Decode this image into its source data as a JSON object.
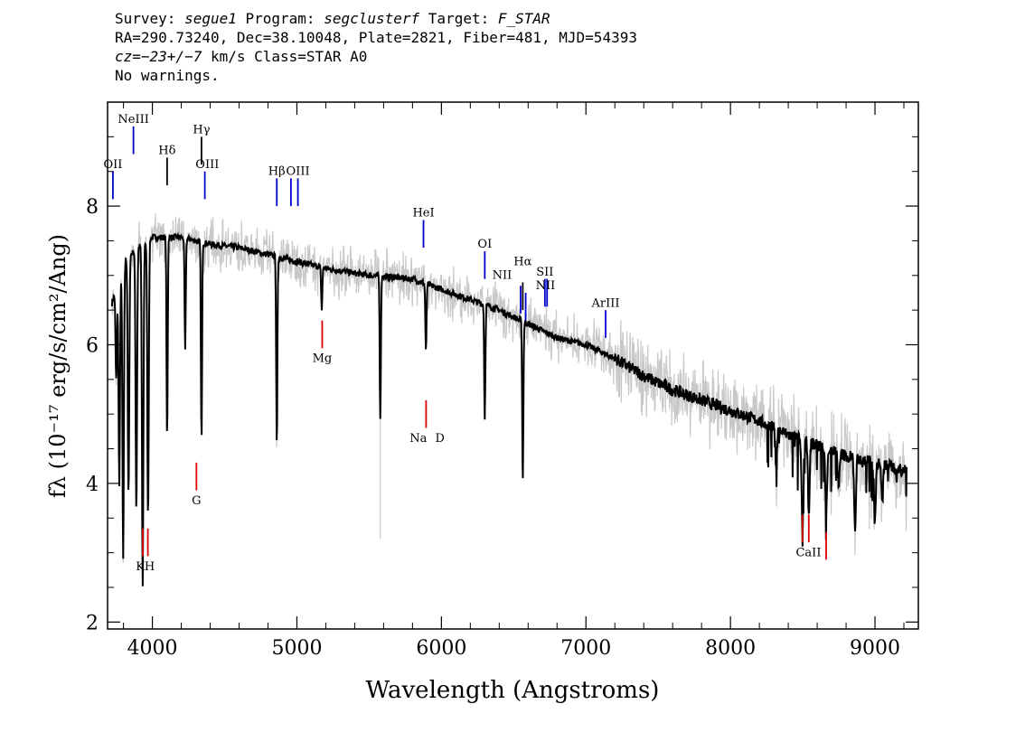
{
  "header": {
    "line1": [
      {
        "t": "Survey: ",
        "i": false
      },
      {
        "t": "segue1",
        "i": true
      },
      {
        "t": " Program: ",
        "i": false
      },
      {
        "t": "segclusterf",
        "i": true
      },
      {
        "t": " Target: ",
        "i": false
      },
      {
        "t": "F_STAR",
        "i": true
      }
    ],
    "line2": [
      {
        "t": "RA=290.73240, Dec=38.10048, Plate=2821, Fiber=481, MJD=54393",
        "i": false
      }
    ],
    "line3": [
      {
        "t": "cz=−23+/−7",
        "i": true
      },
      {
        "t": " km/s Class=STAR A0",
        "i": false
      }
    ],
    "line4": [
      {
        "t": "No warnings.",
        "i": false
      }
    ]
  },
  "chart_data": {
    "type": "line",
    "xlabel": "Wavelength (Angstroms)",
    "ylabel": "fλ (10⁻¹⁷ erg/s/cm²/Ang)",
    "xlim": [
      3690,
      9300
    ],
    "ylim": [
      1.9,
      9.5
    ],
    "xticks": [
      4000,
      5000,
      6000,
      7000,
      8000,
      9000
    ],
    "yticks": [
      2,
      4,
      6,
      8
    ],
    "grid": false,
    "continuum": [
      [
        3720,
        6.6
      ],
      [
        3800,
        7.2
      ],
      [
        3900,
        7.4
      ],
      [
        4000,
        7.55
      ],
      [
        4200,
        7.55
      ],
      [
        4400,
        7.45
      ],
      [
        4600,
        7.4
      ],
      [
        4800,
        7.3
      ],
      [
        5000,
        7.2
      ],
      [
        5200,
        7.1
      ],
      [
        5500,
        7.0
      ],
      [
        5800,
        6.95
      ],
      [
        6000,
        6.8
      ],
      [
        6200,
        6.65
      ],
      [
        6400,
        6.5
      ],
      [
        6600,
        6.3
      ],
      [
        6800,
        6.1
      ],
      [
        7000,
        6.0
      ],
      [
        7200,
        5.8
      ],
      [
        7400,
        5.55
      ],
      [
        7600,
        5.35
      ],
      [
        7800,
        5.2
      ],
      [
        8000,
        5.05
      ],
      [
        8200,
        4.9
      ],
      [
        8400,
        4.7
      ],
      [
        8600,
        4.55
      ],
      [
        8800,
        4.4
      ],
      [
        9000,
        4.3
      ],
      [
        9200,
        4.2
      ]
    ],
    "absorption_lines": [
      [
        3750,
        5.5
      ],
      [
        3771,
        4.0
      ],
      [
        3798,
        2.9
      ],
      [
        3835,
        3.8
      ],
      [
        3889,
        3.6
      ],
      [
        3933,
        2.5
      ],
      [
        3970,
        3.5
      ],
      [
        4102,
        4.65
      ],
      [
        4227,
        5.9
      ],
      [
        4340,
        4.6
      ],
      [
        4861,
        4.5
      ],
      [
        5172,
        6.5
      ],
      [
        5577,
        4.95
      ],
      [
        5893,
        5.9
      ],
      [
        6300,
        4.95
      ],
      [
        6563,
        4.0
      ],
      [
        8316,
        4.3
      ],
      [
        8498,
        3.4
      ],
      [
        8542,
        3.6
      ],
      [
        8662,
        3.6
      ],
      [
        8750,
        4.0
      ],
      [
        8862,
        3.3
      ],
      [
        9000,
        3.5
      ],
      [
        9050,
        3.7
      ],
      [
        9150,
        4.1
      ]
    ],
    "emission_markers": [
      {
        "label": "OII",
        "x": 3727,
        "y0": 8.1,
        "y1": 8.5,
        "color": "#0000cc"
      },
      {
        "label": "NeIII",
        "x": 3869,
        "y0": 8.75,
        "y1": 9.15,
        "color": "#0000cc"
      },
      {
        "label": "Hδ",
        "x": 4102,
        "y0": 8.3,
        "y1": 8.7,
        "color": "#000000"
      },
      {
        "label": "Hγ",
        "x": 4340,
        "y0": 8.6,
        "y1": 9.0,
        "color": "#000000"
      },
      {
        "label": "OIII",
        "x": 4363,
        "y0": 8.1,
        "y1": 8.5,
        "color": "#0000cc"
      },
      {
        "label": "Hβ",
        "x": 4861,
        "y0": 8.0,
        "y1": 8.4,
        "color": "#0000cc"
      },
      {
        "label": "OIII",
        "x": 4959,
        "y0": 8.0,
        "y1": 8.4,
        "color": "#0000cc"
      },
      {
        "label": "OIII",
        "x": 5007,
        "y0": 8.0,
        "y1": 8.4,
        "color": "#0000cc"
      },
      {
        "label": "HeI",
        "x": 5876,
        "y0": 7.4,
        "y1": 7.8,
        "color": "#0000cc"
      },
      {
        "label": "OI",
        "x": 6300,
        "y0": 6.95,
        "y1": 7.35,
        "color": "#0000cc"
      },
      {
        "label": "NII",
        "x": 6548,
        "y0": 6.45,
        "y1": 6.85,
        "color": "#0000cc"
      },
      {
        "label": "Hα",
        "x": 6563,
        "y0": 6.5,
        "y1": 6.9,
        "color": "#000000"
      },
      {
        "label": "NII",
        "x": 6583,
        "y0": 6.35,
        "y1": 6.75,
        "color": "#0000cc"
      },
      {
        "label": "SII",
        "x": 6716,
        "y0": 6.55,
        "y1": 6.95,
        "color": "#0000cc"
      },
      {
        "label": "SII",
        "x": 6731,
        "y0": 6.55,
        "y1": 6.95,
        "color": "#0000cc"
      },
      {
        "label": "ArIII",
        "x": 7136,
        "y0": 6.1,
        "y1": 6.5,
        "color": "#0000cc"
      }
    ],
    "emission_labels": [
      {
        "text": "OII",
        "x": 3727,
        "y": 8.55
      },
      {
        "text": "NeIII",
        "x": 3869,
        "y": 9.2
      },
      {
        "text": "Hδ",
        "x": 4102,
        "y": 8.75
      },
      {
        "text": "Hγ",
        "x": 4340,
        "y": 9.05
      },
      {
        "text": "OIII",
        "x": 4380,
        "y": 8.55
      },
      {
        "text": "Hβ",
        "x": 4861,
        "y": 8.45
      },
      {
        "text": "OIII",
        "x": 5007,
        "y": 8.45
      },
      {
        "text": "HeI",
        "x": 5876,
        "y": 7.85
      },
      {
        "text": "OI",
        "x": 6300,
        "y": 7.4
      },
      {
        "text": "NII",
        "x": 6420,
        "y": 6.95
      },
      {
        "text": "Hα",
        "x": 6563,
        "y": 7.15
      },
      {
        "text": "SII",
        "x": 6716,
        "y": 7.0
      },
      {
        "text": "NII",
        "x": 6720,
        "y": 6.8
      },
      {
        "text": "ArIII",
        "x": 7136,
        "y": 6.55
      }
    ],
    "absorption_markers": [
      {
        "label": "K",
        "x": 3934,
        "y0": 2.95,
        "y1": 3.35,
        "color": "#dd0000"
      },
      {
        "label": "H",
        "x": 3969,
        "y0": 2.95,
        "y1": 3.35,
        "color": "#dd0000"
      },
      {
        "label": "G",
        "x": 4305,
        "y0": 3.9,
        "y1": 4.3,
        "color": "#dd0000"
      },
      {
        "label": "Mg",
        "x": 5175,
        "y0": 5.95,
        "y1": 6.35,
        "color": "#dd0000"
      },
      {
        "label": "Na",
        "x": 5894,
        "y0": 4.8,
        "y1": 5.2,
        "color": "#dd0000"
      },
      {
        "label": "CaII",
        "x": 8498,
        "y0": 3.15,
        "y1": 3.55,
        "color": "#dd0000"
      },
      {
        "label": "CaII",
        "x": 8542,
        "y0": 3.15,
        "y1": 3.55,
        "color": "#dd0000"
      },
      {
        "label": "CaII",
        "x": 8662,
        "y0": 2.9,
        "y1": 3.3,
        "color": "#dd0000"
      }
    ],
    "absorption_labels": [
      {
        "text": "KH",
        "x": 3951,
        "y": 2.75
      },
      {
        "text": "G",
        "x": 4305,
        "y": 3.7
      },
      {
        "text": "Mg",
        "x": 5175,
        "y": 5.75
      },
      {
        "text": "Na",
        "x": 5840,
        "y": 4.6
      },
      {
        "text": "D",
        "x": 5990,
        "y": 4.6
      },
      {
        "text": "CaII",
        "x": 8540,
        "y": 2.95
      }
    ],
    "series": [
      {
        "values": [],
        "color": "#000000"
      },
      {
        "values": [],
        "color": "#c8c8c8"
      }
    ]
  }
}
